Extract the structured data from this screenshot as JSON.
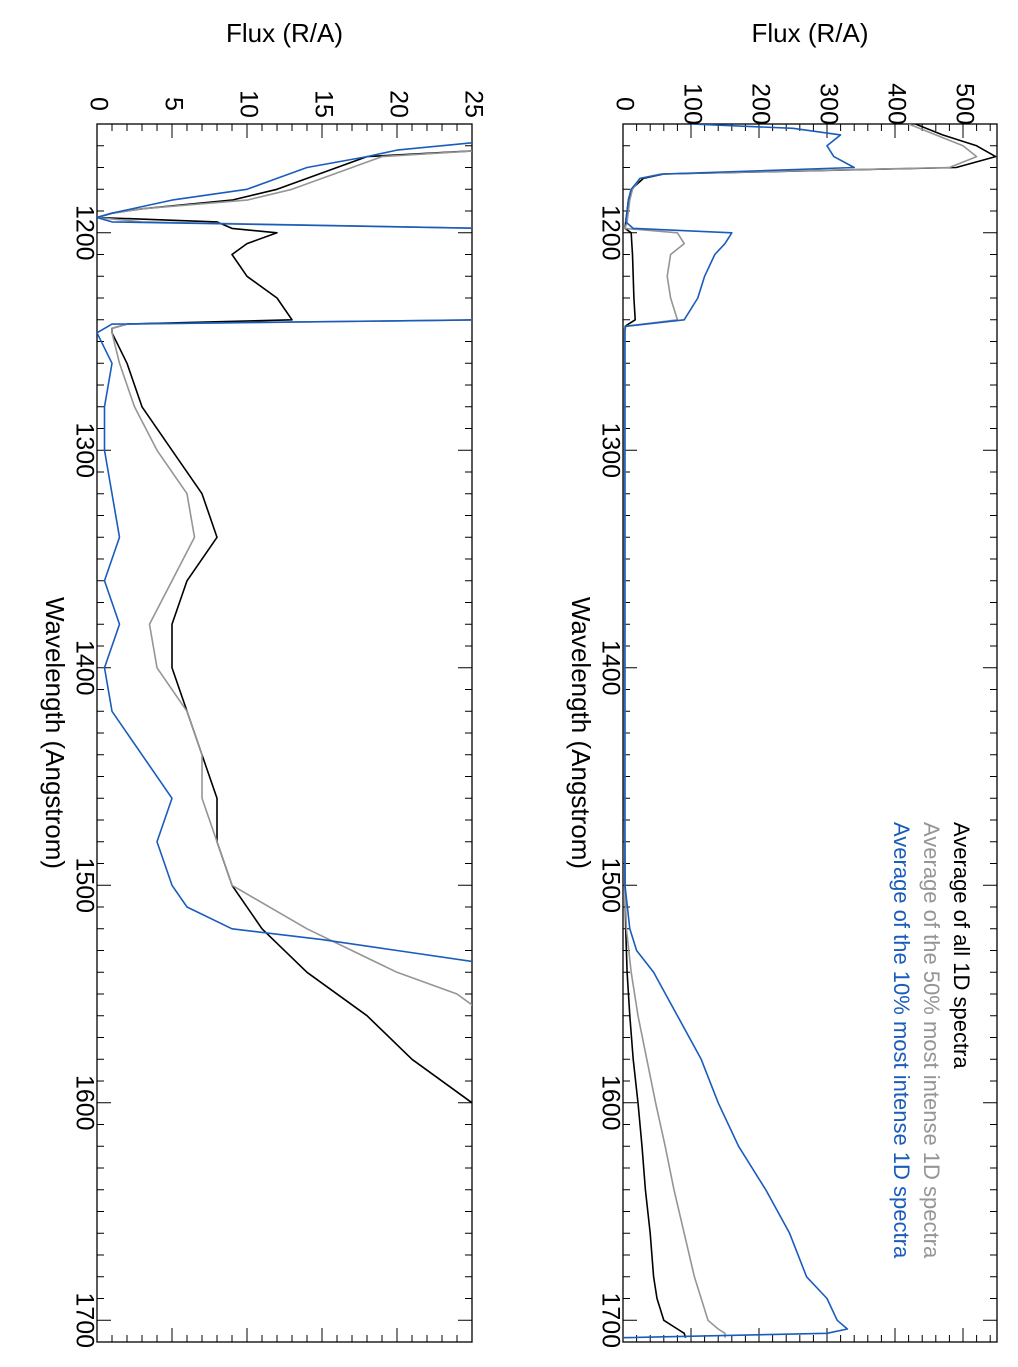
{
  "chart_data": [
    {
      "type": "line",
      "panel": "right",
      "xlabel": "Wavelength (Angstrom)",
      "ylabel": "Flux (R/A)",
      "xlim": [
        1150,
        1710
      ],
      "ylim": [
        0,
        550
      ],
      "xticks": [
        1200,
        1300,
        1400,
        1500,
        1600,
        1700
      ],
      "yticks": [
        0,
        100,
        200,
        300,
        400,
        500
      ],
      "grid": false,
      "legend_position": "top-right",
      "series": [
        {
          "name": "Average of all 1D spectra",
          "color": "#000000",
          "x": [
            1150,
            1155,
            1160,
            1165,
            1170,
            1173,
            1175,
            1180,
            1185,
            1190,
            1195,
            1198,
            1200,
            1205,
            1210,
            1220,
            1230,
            1240,
            1243,
            1245,
            1260,
            1300,
            1350,
            1400,
            1450,
            1500,
            1520,
            1540,
            1560,
            1580,
            1600,
            1620,
            1640,
            1660,
            1680,
            1690,
            1700,
            1704,
            1706,
            1708
          ],
          "y": [
            430,
            470,
            520,
            548,
            490,
            60,
            30,
            12,
            8,
            6,
            4,
            3,
            12,
            13,
            14,
            15,
            16,
            18,
            3,
            2,
            2,
            2,
            2,
            2,
            2,
            3,
            4,
            6,
            10,
            15,
            22,
            28,
            33,
            40,
            45,
            50,
            60,
            80,
            90,
            92
          ]
        },
        {
          "name": "Average of the 50% most intense 1D spectra",
          "color": "#959595",
          "x": [
            1150,
            1155,
            1160,
            1165,
            1170,
            1173,
            1175,
            1180,
            1185,
            1190,
            1195,
            1198,
            1200,
            1205,
            1210,
            1220,
            1230,
            1240,
            1243,
            1245,
            1260,
            1300,
            1350,
            1400,
            1450,
            1500,
            1520,
            1540,
            1560,
            1580,
            1600,
            1620,
            1640,
            1660,
            1680,
            1690,
            1700,
            1704,
            1706,
            1708
          ],
          "y": [
            420,
            460,
            500,
            520,
            480,
            55,
            25,
            14,
            10,
            8,
            6,
            3,
            80,
            90,
            70,
            65,
            70,
            80,
            3,
            2,
            2,
            2,
            2,
            2,
            2,
            3,
            5,
            12,
            22,
            35,
            48,
            62,
            75,
            90,
            105,
            115,
            125,
            140,
            150,
            150
          ]
        },
        {
          "name": "Average of the 10% most intense 1D spectra",
          "color": "#1a5cbc",
          "x": [
            1150,
            1152,
            1155,
            1160,
            1165,
            1170,
            1173,
            1175,
            1180,
            1185,
            1190,
            1195,
            1198,
            1200,
            1205,
            1210,
            1220,
            1230,
            1240,
            1243,
            1245,
            1260,
            1300,
            1350,
            1400,
            1450,
            1500,
            1520,
            1530,
            1540,
            1560,
            1580,
            1600,
            1620,
            1640,
            1660,
            1680,
            1690,
            1700,
            1704,
            1706,
            1708
          ],
          "y": [
            100,
            250,
            320,
            300,
            310,
            340,
            60,
            25,
            12,
            8,
            6,
            4,
            15,
            160,
            150,
            135,
            120,
            110,
            90,
            4,
            3,
            3,
            3,
            3,
            3,
            3,
            3,
            10,
            20,
            45,
            80,
            115,
            140,
            170,
            210,
            245,
            270,
            300,
            315,
            330,
            300,
            0
          ]
        }
      ]
    },
    {
      "type": "line",
      "panel": "left",
      "xlabel": "Wavelength (Angstrom)",
      "ylabel": "Flux (R/A)",
      "xlim": [
        1150,
        1710
      ],
      "ylim": [
        0,
        25
      ],
      "xticks": [
        1200,
        1300,
        1400,
        1500,
        1600,
        1700
      ],
      "yticks": [
        0,
        5,
        10,
        15,
        20,
        25
      ],
      "grid": false,
      "legend_position": "none",
      "series": [
        {
          "color": "#000000",
          "x": [
            1150,
            1162,
            1165,
            1170,
            1175,
            1180,
            1185,
            1189,
            1191,
            1193,
            1195,
            1198,
            1200,
            1205,
            1210,
            1220,
            1230,
            1240,
            1242,
            1244,
            1246,
            1260,
            1280,
            1300,
            1320,
            1340,
            1360,
            1380,
            1400,
            1420,
            1440,
            1460,
            1480,
            1500,
            1520,
            1540,
            1560,
            1580,
            1600
          ],
          "y": [
            26,
            26,
            18,
            16,
            14,
            12,
            9,
            3,
            1,
            0,
            8,
            9,
            12,
            10,
            9,
            10,
            12,
            13,
            2,
            1,
            1,
            2,
            3,
            5,
            7,
            8,
            6,
            5,
            5,
            6,
            7,
            8,
            8,
            9,
            11,
            14,
            18,
            21,
            25
          ]
        },
        {
          "color": "#959595",
          "x": [
            1150,
            1162,
            1165,
            1170,
            1175,
            1180,
            1185,
            1189,
            1191,
            1193,
            1195,
            1198,
            1200,
            1205,
            1210,
            1220,
            1230,
            1240,
            1242,
            1244,
            1246,
            1260,
            1280,
            1300,
            1320,
            1340,
            1360,
            1380,
            1400,
            1420,
            1440,
            1460,
            1480,
            1500,
            1520,
            1540,
            1550,
            1560
          ],
          "y": [
            26,
            26,
            19,
            17,
            15,
            13,
            10,
            3,
            1,
            0,
            3,
            26,
            26,
            26,
            26,
            26,
            26,
            26,
            2,
            1,
            1,
            1.5,
            2.5,
            4,
            6,
            6.5,
            5,
            3.5,
            4,
            6,
            7,
            7,
            8,
            9,
            14,
            20,
            24,
            26
          ]
        },
        {
          "color": "#1a5cbc",
          "x": [
            1150,
            1158,
            1162,
            1165,
            1170,
            1175,
            1180,
            1185,
            1188,
            1191,
            1193,
            1195,
            1198,
            1200,
            1205,
            1210,
            1220,
            1230,
            1240,
            1242,
            1244,
            1246,
            1260,
            1280,
            1300,
            1320,
            1340,
            1360,
            1380,
            1400,
            1420,
            1440,
            1460,
            1480,
            1500,
            1510,
            1520,
            1525,
            1530,
            1535
          ],
          "y": [
            26,
            26,
            20,
            18,
            14,
            12,
            10,
            5,
            3,
            1,
            0,
            1,
            26,
            26,
            26,
            26,
            26,
            26,
            26,
            1,
            0.5,
            0,
            1,
            0.5,
            0.5,
            1,
            1.5,
            0.5,
            1.5,
            0.5,
            1,
            3,
            5,
            4,
            5,
            6,
            9,
            15,
            20,
            25
          ]
        }
      ]
    }
  ]
}
